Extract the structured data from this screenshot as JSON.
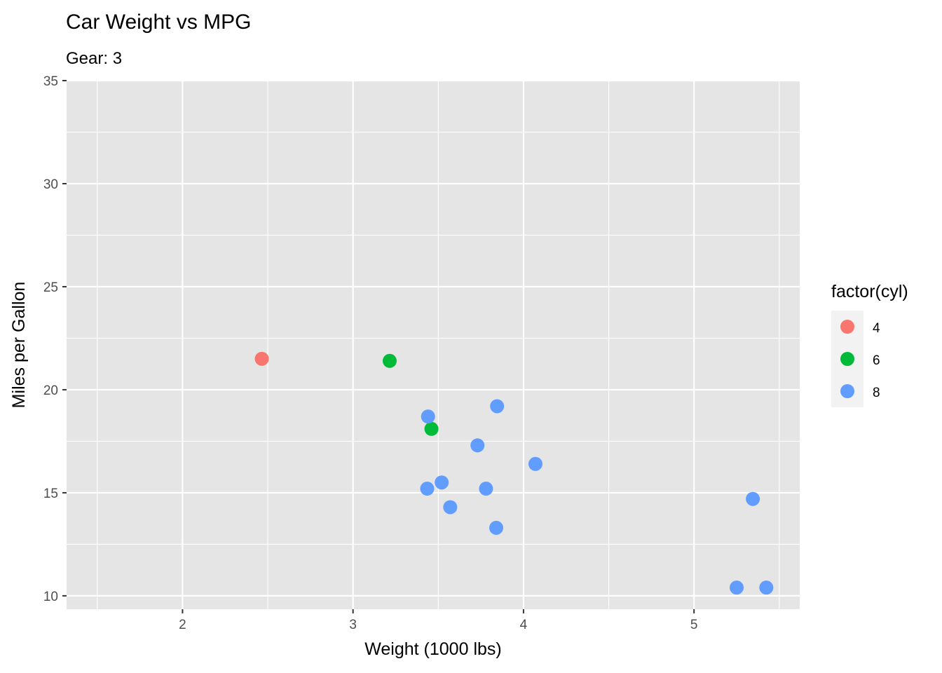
{
  "chart_data": {
    "type": "scatter",
    "title": "Car Weight vs MPG",
    "subtitle": "Gear: 3",
    "xlabel": "Weight (1000 lbs)",
    "ylabel": "Miles per Gallon",
    "xlim": [
      1.32,
      5.62
    ],
    "ylim": [
      9.35,
      35.0
    ],
    "x_ticks": [
      2,
      3,
      4,
      5
    ],
    "y_ticks": [
      10,
      15,
      20,
      25,
      30,
      35
    ],
    "grid": true,
    "legend": {
      "title": "factor(cyl)",
      "placement": "right",
      "entries": [
        {
          "label": "4",
          "color": "#F8766D"
        },
        {
          "label": "6",
          "color": "#00BA38"
        },
        {
          "label": "8",
          "color": "#619CFF"
        }
      ]
    },
    "colors": {
      "panel_bg": "#E5E5E5",
      "grid": "#FFFFFF",
      "legend_key_bg": "#F2F2F2"
    },
    "series": [
      {
        "name": "4",
        "color": "#F8766D",
        "points": [
          {
            "x": 2.465,
            "y": 21.5
          }
        ]
      },
      {
        "name": "6",
        "color": "#00BA38",
        "points": [
          {
            "x": 3.215,
            "y": 21.4
          },
          {
            "x": 3.46,
            "y": 18.1
          }
        ]
      },
      {
        "name": "8",
        "color": "#619CFF",
        "points": [
          {
            "x": 3.44,
            "y": 18.7
          },
          {
            "x": 3.57,
            "y": 14.3
          },
          {
            "x": 4.07,
            "y": 16.4
          },
          {
            "x": 3.73,
            "y": 17.3
          },
          {
            "x": 3.78,
            "y": 15.2
          },
          {
            "x": 5.25,
            "y": 10.4
          },
          {
            "x": 5.424,
            "y": 10.4
          },
          {
            "x": 5.345,
            "y": 14.7
          },
          {
            "x": 3.52,
            "y": 15.5
          },
          {
            "x": 3.435,
            "y": 15.2
          },
          {
            "x": 3.84,
            "y": 13.3
          },
          {
            "x": 3.845,
            "y": 19.2
          }
        ]
      }
    ]
  }
}
